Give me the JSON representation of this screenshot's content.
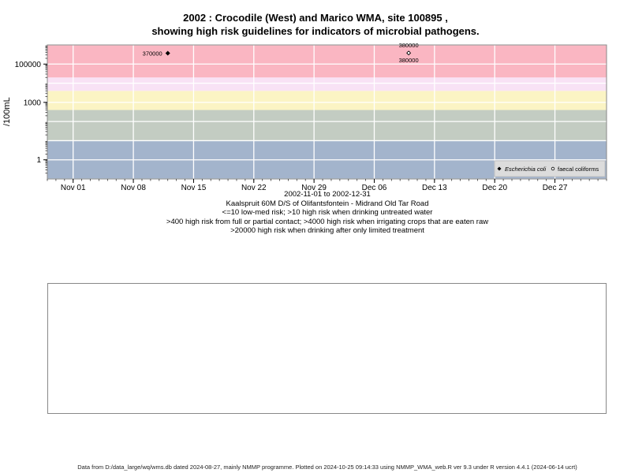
{
  "title_line1": "2002 : Crocodile (West) and Marico WMA, site 100895 ,",
  "title_line2": "showing high risk guidelines for indicators of microbial pathogens.",
  "ylabel": "/100mL",
  "caption": [
    "2002-11-01 to 2002-12-31",
    "Kaalspruit 60M D/S of Olifantsfontein - Midrand Old Tar Road",
    "<=10 low-med risk; >10 high risk when drinking untreated water",
    ">400 high risk from full or partial contact; >4000 high risk when irrigating crops that are eaten raw",
    ">20000 high risk when drinking after only limited treatment"
  ],
  "footer": "Data from D:/data_large/wq/wms.db dated 2024-08-27, mainly NMMP programme. Plotted on 2024-10-25 09:14:33 using NMMP_WMA_web.R ver 9.3 under R version 4.4.1 (2024-06-14 ucrt)",
  "chart_data": {
    "type": "scatter",
    "title": "2002 : Crocodile (West) and Marico WMA, site 100895 , showing high risk guidelines for indicators of microbial pathogens.",
    "ylabel": "/100mL",
    "xlabel": "2002-11-01 to 2002-12-31",
    "y_scale": "log10",
    "x_range": [
      "2002-10-29",
      "2003-01-02"
    ],
    "ylim": [
      0.1,
      1000000
    ],
    "x_ticks": [
      {
        "date": "2002-11-01",
        "label": "Nov 01"
      },
      {
        "date": "2002-11-08",
        "label": "Nov 08"
      },
      {
        "date": "2002-11-15",
        "label": "Nov 15"
      },
      {
        "date": "2002-11-22",
        "label": "Nov 22"
      },
      {
        "date": "2002-11-29",
        "label": "Nov 29"
      },
      {
        "date": "2002-12-06",
        "label": "Dec 06"
      },
      {
        "date": "2002-12-13",
        "label": "Dec 13"
      },
      {
        "date": "2002-12-20",
        "label": "Dec 20"
      },
      {
        "date": "2002-12-27",
        "label": "Dec 27"
      }
    ],
    "y_ticks": [
      {
        "value": 1,
        "label": "1"
      },
      {
        "value": 1000,
        "label": "1000"
      },
      {
        "value": 100000,
        "label": "100000"
      }
    ],
    "risk_bands": [
      {
        "from": 0.1,
        "to": 10,
        "color": "#a3b4cc"
      },
      {
        "from": 10,
        "to": 400,
        "color": "#c3ccc2"
      },
      {
        "from": 400,
        "to": 4000,
        "color": "#fbf4c4"
      },
      {
        "from": 4000,
        "to": 20000,
        "color": "#f8e2f5"
      },
      {
        "from": 20000,
        "to": 1000000,
        "color": "#fab6c2"
      }
    ],
    "grid": true,
    "legend_position": "bottom-right",
    "series": [
      {
        "name": "Escherichia coli",
        "marker": "filled-diamond",
        "points": [
          {
            "x": "2002-11-12",
            "y": 370000,
            "label": "370000",
            "label_pos": "left"
          },
          {
            "x": "2002-12-10",
            "y": 380000,
            "label": "380000",
            "label_pos": "above"
          }
        ]
      },
      {
        "name": "faecal coliforms",
        "marker": "open-circle",
        "points": [
          {
            "x": "2002-12-10",
            "y": 380000,
            "label": "380000",
            "label_pos": "below"
          }
        ]
      }
    ]
  }
}
